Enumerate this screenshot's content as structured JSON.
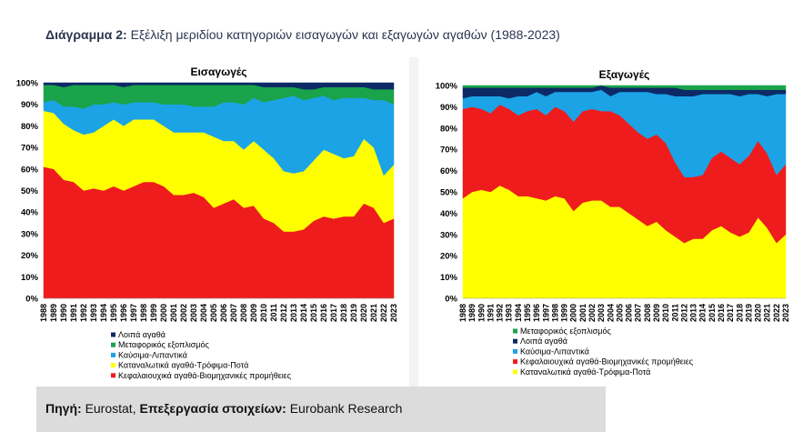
{
  "header": {
    "label": "Διάγραμμα 2:",
    "text": "Εξέλιξη μεριδίου κατηγοριών εισαγωγών και εξαγωγών αγαθών (1988-2023)"
  },
  "source": {
    "label": "Πηγή:",
    "value1": "Eurostat,",
    "label2": "Επεξεργασία στοιχείων:",
    "value2": "Eurobank Research"
  },
  "chart_data": [
    {
      "type": "area",
      "stacked": true,
      "title": "Εισαγωγές",
      "ylim": [
        0,
        100
      ],
      "yticks": [
        "0%",
        "10%",
        "20%",
        "30%",
        "40%",
        "50%",
        "60%",
        "70%",
        "80%",
        "90%",
        "100%"
      ],
      "grid": false,
      "legend_position": "bottom-left",
      "x": [
        "1988",
        "1989",
        "1990",
        "1991",
        "1992",
        "1993",
        "1994",
        "1995",
        "1996",
        "1997",
        "1998",
        "1999",
        "2000",
        "2001",
        "2002",
        "2003",
        "2004",
        "2005",
        "2006",
        "2007",
        "2008",
        "2009",
        "2010",
        "2011",
        "2012",
        "2013",
        "2014",
        "2015",
        "2016",
        "2017",
        "2018",
        "2019",
        "2020",
        "2021",
        "2022",
        "2023"
      ],
      "series": [
        {
          "name": "Κεφαλαιουχικά αγαθά-Βιομηχανικές προμήθειες",
          "color": "#ee1c1c",
          "values": [
            61,
            60,
            55,
            54,
            50,
            51,
            50,
            52,
            50,
            52,
            54,
            54,
            52,
            48,
            48,
            49,
            47,
            42,
            44,
            46,
            42,
            43,
            37,
            35,
            31,
            31,
            32,
            36,
            38,
            37,
            38,
            38,
            44,
            42,
            35,
            37
          ]
        },
        {
          "name": "Καταναλωτικά αγαθά-Τρόφιμα-Ποτά",
          "color": "#ffff00",
          "values": [
            26,
            26,
            26,
            24,
            26,
            26,
            30,
            31,
            30,
            31,
            29,
            29,
            28,
            29,
            29,
            28,
            30,
            33,
            29,
            27,
            27,
            30,
            32,
            30,
            28,
            27,
            27,
            28,
            31,
            30,
            27,
            28,
            30,
            28,
            22,
            25
          ]
        },
        {
          "name": "Καύσιμα-Λιπαντικά",
          "color": "#1ba3e6",
          "values": [
            4,
            6,
            8,
            11,
            12,
            13,
            10,
            8,
            10,
            8,
            8,
            8,
            10,
            13,
            13,
            12,
            12,
            14,
            18,
            18,
            21,
            20,
            22,
            27,
            34,
            36,
            33,
            29,
            25,
            25,
            28,
            27,
            19,
            22,
            35,
            28
          ]
        },
        {
          "name": "Μεταφορικός εξοπλισμός",
          "color": "#1aa34a",
          "values": [
            8,
            7,
            9,
            10,
            11,
            9,
            9,
            8,
            8,
            8,
            8,
            8,
            9,
            9,
            9,
            10,
            10,
            10,
            8,
            8,
            9,
            6,
            7,
            6,
            5,
            4,
            5,
            4,
            4,
            6,
            5,
            5,
            5,
            5,
            5,
            7
          ]
        },
        {
          "name": "Λοιπά αγαθά",
          "color": "#0d2a66",
          "values": [
            1,
            1,
            2,
            1,
            1,
            1,
            1,
            1,
            2,
            1,
            1,
            1,
            1,
            1,
            1,
            1,
            1,
            1,
            1,
            1,
            1,
            1,
            2,
            2,
            2,
            2,
            3,
            3,
            2,
            2,
            2,
            2,
            2,
            3,
            3,
            3
          ]
        }
      ]
    },
    {
      "type": "area",
      "stacked": true,
      "title": "Εξαγωγές",
      "ylim": [
        0,
        100
      ],
      "yticks": [
        "0%",
        "10%",
        "20%",
        "30%",
        "40%",
        "50%",
        "60%",
        "70%",
        "80%",
        "90%",
        "100%"
      ],
      "grid": false,
      "legend_position": "bottom-left",
      "x": [
        "1988",
        "1989",
        "1990",
        "1991",
        "1992",
        "1993",
        "1994",
        "1995",
        "1996",
        "1997",
        "1998",
        "1999",
        "2000",
        "2001",
        "2002",
        "2003",
        "2004",
        "2005",
        "2006",
        "2007",
        "2008",
        "2009",
        "2010",
        "2011",
        "2012",
        "2013",
        "2014",
        "2015",
        "2016",
        "2017",
        "2018",
        "2019",
        "2020",
        "2021",
        "2022",
        "2023"
      ],
      "series": [
        {
          "name": "Καταναλωτικά αγαθά-Τρόφιμα-Ποτά",
          "color": "#ffff00",
          "values": [
            47,
            50,
            51,
            50,
            53,
            51,
            48,
            48,
            47,
            46,
            48,
            47,
            41,
            45,
            46,
            46,
            43,
            43,
            40,
            37,
            34,
            36,
            32,
            29,
            26,
            28,
            28,
            32,
            34,
            31,
            29,
            31,
            38,
            33,
            26,
            30
          ]
        },
        {
          "name": "Κεφαλαιουχικά αγαθά-Βιομηχανικές προμήθειες",
          "color": "#ee1c1c",
          "values": [
            42,
            40,
            38,
            37,
            38,
            38,
            38,
            40,
            42,
            40,
            42,
            41,
            42,
            43,
            43,
            42,
            45,
            43,
            42,
            41,
            41,
            41,
            41,
            35,
            31,
            29,
            30,
            34,
            35,
            35,
            34,
            36,
            36,
            35,
            32,
            33
          ]
        },
        {
          "name": "Καύσιμα-Λιπαντικά",
          "color": "#1ba3e6",
          "values": [
            5,
            5,
            6,
            8,
            4,
            5,
            9,
            7,
            8,
            9,
            7,
            9,
            14,
            9,
            8,
            10,
            7,
            11,
            15,
            19,
            22,
            19,
            23,
            31,
            38,
            38,
            38,
            30,
            27,
            30,
            32,
            29,
            22,
            27,
            38,
            33
          ]
        },
        {
          "name": "Λοιπά αγαθά",
          "color": "#0d2a66",
          "values": [
            5,
            4,
            4,
            4,
            4,
            5,
            4,
            4,
            2,
            4,
            2,
            2,
            2,
            2,
            2,
            2,
            4,
            2,
            2,
            2,
            2,
            3,
            3,
            4,
            3,
            3,
            2,
            2,
            2,
            2,
            3,
            2,
            2,
            3,
            2,
            2
          ]
        },
        {
          "name": "Μεταφορικός εξοπλισμός",
          "color": "#1aa34a",
          "values": [
            1,
            1,
            1,
            1,
            1,
            1,
            1,
            1,
            1,
            1,
            1,
            1,
            1,
            1,
            1,
            0,
            1,
            1,
            1,
            1,
            1,
            1,
            1,
            1,
            2,
            2,
            2,
            2,
            2,
            2,
            2,
            2,
            2,
            2,
            2,
            2
          ]
        }
      ]
    }
  ]
}
